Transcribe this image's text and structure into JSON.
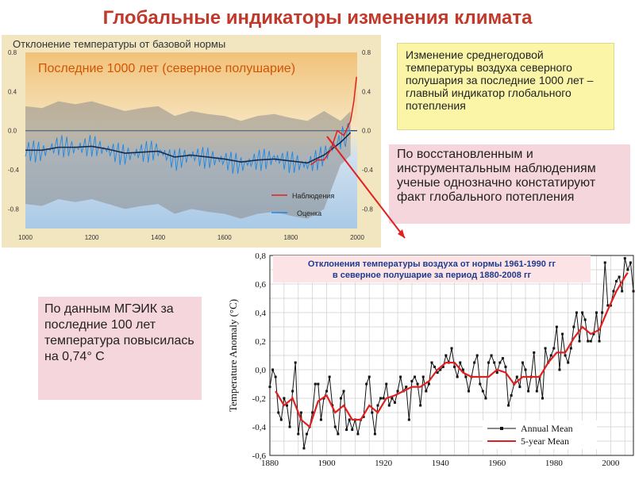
{
  "title": "Глобальные индикаторы изменения климата",
  "note_yellow": "Изменение среднегодовой температуры воздуха северного полушария за последние 1000 лет – главный индикатор глобального потепления",
  "note_pink_right": "По восстановленным и инструментальным наблюдениям ученые однозначно констатируют факт глобального потепления",
  "note_pink_left": "По данным МГЭИК за последние 100 лет температура повысилась на 0,74° С",
  "colors": {
    "title": "#c0392b",
    "observations": "#e02020",
    "estimate": "#1e88e5",
    "annual": "#111111",
    "five_year": "#e02020",
    "arrow": "#e02020"
  },
  "chart_data": [
    {
      "type": "line",
      "title": "Отклонение температуры от базовой нормы",
      "subtitle": "Последние 1000 лет (северное полушарие)",
      "xlabel": "",
      "ylabel": "",
      "xlim": [
        1000,
        2000
      ],
      "ylim": [
        -1.0,
        0.8
      ],
      "x_ticks": [
        "1000",
        "1200",
        "1400",
        "1600",
        "1800",
        "2000"
      ],
      "y_ticks_left": [
        "0.8",
        "0.4",
        "0.0",
        "-0.4",
        "-0.8"
      ],
      "y_ticks_right": [
        "0.8",
        "0.4",
        "0.0",
        "-0.4",
        "-0.8"
      ],
      "legend": {
        "position": "bottom-right",
        "entries": [
          "Наблюдения",
          "Оценка"
        ]
      },
      "series": [
        {
          "name": "Оценка",
          "x": [
            1000,
            1050,
            1100,
            1150,
            1200,
            1250,
            1300,
            1350,
            1400,
            1450,
            1500,
            1550,
            1600,
            1650,
            1700,
            1750,
            1800,
            1850,
            1900,
            1950,
            1980
          ],
          "values": [
            -0.2,
            -0.22,
            -0.15,
            -0.18,
            -0.15,
            -0.2,
            -0.25,
            -0.22,
            -0.2,
            -0.3,
            -0.25,
            -0.28,
            -0.3,
            -0.35,
            -0.3,
            -0.28,
            -0.32,
            -0.35,
            -0.25,
            -0.1,
            0.0
          ]
        },
        {
          "name": "Наблюдения",
          "x": [
            1860,
            1880,
            1900,
            1920,
            1940,
            1960,
            1980,
            1990,
            1998
          ],
          "values": [
            -0.35,
            -0.3,
            -0.3,
            -0.2,
            0.0,
            -0.05,
            0.1,
            0.3,
            0.55
          ]
        }
      ],
      "smoothed": {
        "x": [
          1000,
          1050,
          1100,
          1150,
          1200,
          1250,
          1300,
          1350,
          1400,
          1450,
          1500,
          1550,
          1600,
          1650,
          1700,
          1750,
          1800,
          1850,
          1900,
          1950,
          1980
        ],
        "values": [
          -0.2,
          -0.2,
          -0.17,
          -0.17,
          -0.16,
          -0.19,
          -0.23,
          -0.22,
          -0.21,
          -0.27,
          -0.25,
          -0.27,
          -0.29,
          -0.32,
          -0.3,
          -0.29,
          -0.31,
          -0.33,
          -0.25,
          -0.12,
          -0.02
        ]
      }
    },
    {
      "type": "line",
      "title": "Отклонения  температуры воздуха от нормы 1961-1990 гг\nв северное полушарие за период 1880-2008 гг",
      "xlabel": "",
      "ylabel": "Temperature Anomaly (°C)",
      "xlim": [
        1880,
        2008
      ],
      "ylim": [
        -0.6,
        0.8
      ],
      "x_ticks": [
        "1880",
        "1900",
        "1920",
        "1940",
        "1960",
        "1980",
        "2000"
      ],
      "y_ticks": [
        "0,8",
        "0,6",
        "0,4",
        "0,2",
        "0,0",
        "-0,2",
        "-0,4",
        "-0,6"
      ],
      "grid": true,
      "legend": {
        "position": "bottom-right",
        "entries": [
          "Annual Mean",
          "5-year Mean"
        ]
      },
      "series": [
        {
          "name": "Annual Mean",
          "x": [
            1880,
            1881,
            1882,
            1883,
            1884,
            1885,
            1886,
            1887,
            1888,
            1889,
            1890,
            1891,
            1892,
            1893,
            1894,
            1895,
            1896,
            1897,
            1898,
            1899,
            1900,
            1901,
            1902,
            1903,
            1904,
            1905,
            1906,
            1907,
            1908,
            1909,
            1910,
            1911,
            1912,
            1913,
            1914,
            1915,
            1916,
            1917,
            1918,
            1919,
            1920,
            1921,
            1922,
            1923,
            1924,
            1925,
            1926,
            1927,
            1928,
            1929,
            1930,
            1931,
            1932,
            1933,
            1934,
            1935,
            1936,
            1937,
            1938,
            1939,
            1940,
            1941,
            1942,
            1943,
            1944,
            1945,
            1946,
            1947,
            1948,
            1949,
            1950,
            1951,
            1952,
            1953,
            1954,
            1955,
            1956,
            1957,
            1958,
            1959,
            1960,
            1961,
            1962,
            1963,
            1964,
            1965,
            1966,
            1967,
            1968,
            1969,
            1970,
            1971,
            1972,
            1973,
            1974,
            1975,
            1976,
            1977,
            1978,
            1979,
            1980,
            1981,
            1982,
            1983,
            1984,
            1985,
            1986,
            1987,
            1988,
            1989,
            1990,
            1991,
            1992,
            1993,
            1994,
            1995,
            1996,
            1997,
            1998,
            1999,
            2000,
            2001,
            2002,
            2003,
            2004,
            2005,
            2006,
            2007,
            2008
          ],
          "values": [
            -0.12,
            0.0,
            -0.05,
            -0.3,
            -0.35,
            -0.2,
            -0.25,
            -0.4,
            -0.15,
            0.05,
            -0.45,
            -0.3,
            -0.55,
            -0.45,
            -0.4,
            -0.3,
            -0.1,
            -0.1,
            -0.35,
            -0.2,
            -0.15,
            -0.05,
            -0.25,
            -0.4,
            -0.45,
            -0.2,
            -0.15,
            -0.42,
            -0.35,
            -0.42,
            -0.35,
            -0.45,
            -0.35,
            -0.33,
            -0.1,
            -0.05,
            -0.3,
            -0.45,
            -0.25,
            -0.2,
            -0.2,
            -0.1,
            -0.25,
            -0.2,
            -0.23,
            -0.15,
            -0.05,
            -0.15,
            -0.12,
            -0.35,
            -0.08,
            -0.05,
            -0.1,
            -0.25,
            -0.05,
            -0.15,
            -0.1,
            0.05,
            0.02,
            -0.02,
            0.0,
            0.02,
            0.1,
            0.05,
            0.15,
            0.02,
            -0.05,
            0.05,
            0.0,
            -0.05,
            -0.15,
            -0.05,
            0.05,
            0.1,
            -0.1,
            -0.15,
            -0.2,
            0.05,
            0.1,
            0.05,
            -0.02,
            0.05,
            0.08,
            0.02,
            -0.25,
            -0.18,
            -0.1,
            -0.05,
            -0.12,
            0.05,
            0.0,
            -0.15,
            -0.05,
            0.12,
            -0.15,
            -0.05,
            -0.2,
            0.15,
            0.05,
            0.1,
            0.15,
            0.3,
            0.0,
            0.25,
            0.1,
            0.05,
            0.15,
            0.3,
            0.4,
            0.2,
            0.4,
            0.35,
            0.2,
            0.2,
            0.25,
            0.4,
            0.2,
            0.4,
            0.75,
            0.45,
            0.45,
            0.55,
            0.62,
            0.65,
            0.55,
            0.78,
            0.7,
            0.75,
            0.55
          ]
        },
        {
          "name": "5-year Mean",
          "x": [
            1882,
            1885,
            1888,
            1891,
            1894,
            1897,
            1900,
            1903,
            1906,
            1909,
            1912,
            1915,
            1918,
            1921,
            1924,
            1927,
            1930,
            1933,
            1936,
            1939,
            1942,
            1945,
            1948,
            1951,
            1954,
            1957,
            1960,
            1963,
            1966,
            1969,
            1972,
            1975,
            1978,
            1981,
            1984,
            1987,
            1990,
            1993,
            1996,
            1999,
            2002,
            2005,
            2006
          ],
          "values": [
            -0.15,
            -0.25,
            -0.2,
            -0.35,
            -0.4,
            -0.22,
            -0.18,
            -0.3,
            -0.25,
            -0.35,
            -0.35,
            -0.25,
            -0.3,
            -0.2,
            -0.18,
            -0.15,
            -0.12,
            -0.12,
            -0.08,
            0.0,
            0.05,
            0.05,
            -0.02,
            -0.05,
            -0.05,
            -0.05,
            0.0,
            -0.02,
            -0.1,
            -0.05,
            -0.05,
            -0.05,
            0.05,
            0.12,
            0.12,
            0.22,
            0.3,
            0.25,
            0.28,
            0.42,
            0.55,
            0.65,
            0.68
          ]
        }
      ]
    }
  ]
}
